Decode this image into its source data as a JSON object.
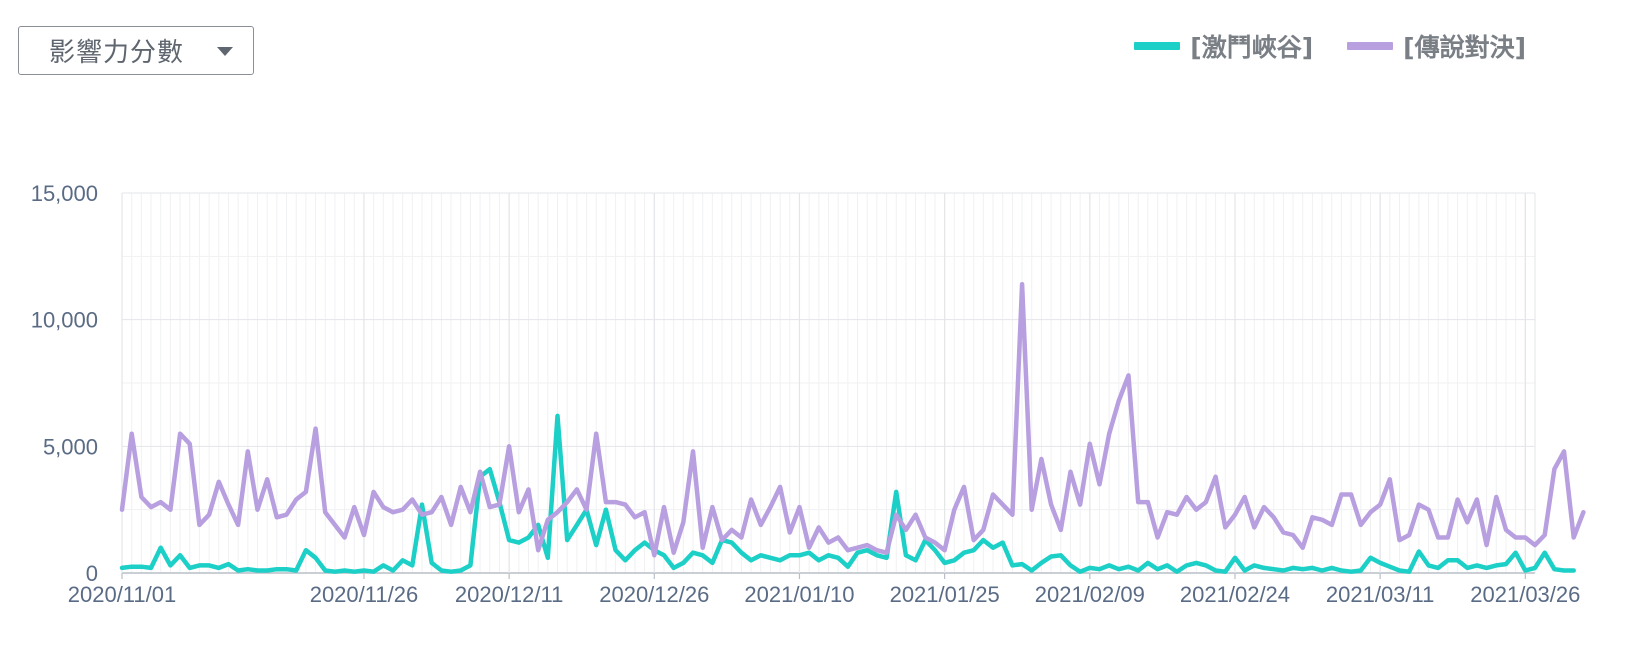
{
  "metric_selector": {
    "selected": "影響力分數"
  },
  "chart_data": {
    "type": "line",
    "title": "",
    "xlabel": "",
    "ylabel": "",
    "ylim": [
      0,
      15000
    ],
    "y_ticks": [
      "0",
      "5,000",
      "10,000",
      "15,000"
    ],
    "y_tick_values": [
      0,
      5000,
      10000,
      15000
    ],
    "x_tick_labels": [
      "2020/11/01",
      "2020/11/26",
      "2020/12/11",
      "2020/12/26",
      "2021/01/10",
      "2021/01/25",
      "2021/02/09",
      "2021/02/24",
      "2021/03/11",
      "2021/03/26"
    ],
    "x_range": [
      "2020/11/01",
      "2021/03/27"
    ],
    "grid": true,
    "legend_position": "top-right",
    "colors": {
      "series_1": "#1ccfc7",
      "series_2": "#b89fe0"
    },
    "series": [
      {
        "name": "[激鬥峽谷]",
        "color": "#1ccfc7",
        "values": [
          200,
          250,
          250,
          200,
          1000,
          300,
          700,
          200,
          300,
          300,
          200,
          350,
          100,
          150,
          100,
          100,
          150,
          150,
          100,
          900,
          600,
          100,
          50,
          100,
          50,
          100,
          50,
          300,
          100,
          500,
          300,
          2700,
          400,
          100,
          50,
          100,
          300,
          3800,
          4100,
          2800,
          1300,
          1200,
          1400,
          1900,
          600,
          6200,
          1300,
          1900,
          2500,
          1100,
          2500,
          900,
          500,
          900,
          1200,
          900,
          700,
          200,
          400,
          800,
          700,
          400,
          1300,
          1200,
          800,
          500,
          700,
          600,
          500,
          700,
          700,
          800,
          500,
          700,
          600,
          250,
          800,
          900,
          700,
          600,
          3200,
          700,
          500,
          1300,
          900,
          400,
          500,
          800,
          900,
          1300,
          1000,
          1200,
          300,
          350,
          100,
          400,
          650,
          700,
          300,
          50,
          200,
          150,
          300,
          150,
          250,
          100,
          400,
          150,
          300,
          50,
          300,
          400,
          300,
          100,
          50,
          600,
          100,
          300,
          200,
          150,
          100,
          200,
          150,
          200,
          100,
          200,
          100,
          50,
          100,
          600,
          400,
          250,
          100,
          50,
          850,
          300,
          200,
          500,
          500,
          200,
          300,
          200,
          300,
          350,
          800,
          100,
          200,
          800,
          150,
          100,
          100
        ]
      },
      {
        "name": "[傳說對決]",
        "color": "#b89fe0",
        "values": [
          2500,
          5500,
          3000,
          2600,
          2800,
          2500,
          5500,
          5100,
          1900,
          2300,
          3600,
          2700,
          1900,
          4800,
          2500,
          3700,
          2200,
          2300,
          2900,
          3200,
          5700,
          2400,
          1900,
          1400,
          2600,
          1500,
          3200,
          2600,
          2400,
          2500,
          2900,
          2300,
          2400,
          3000,
          1900,
          3400,
          2400,
          4000,
          2600,
          2700,
          5000,
          2400,
          3300,
          900,
          2100,
          2400,
          2800,
          3300,
          2500,
          5500,
          2800,
          2800,
          2700,
          2200,
          2400,
          700,
          2600,
          800,
          2000,
          4800,
          1000,
          2600,
          1300,
          1700,
          1400,
          2900,
          1900,
          2600,
          3400,
          1600,
          2600,
          1000,
          1800,
          1200,
          1400,
          900,
          1000,
          1100,
          900,
          800,
          2300,
          1700,
          2300,
          1400,
          1200,
          900,
          2500,
          3400,
          1300,
          1700,
          3100,
          2700,
          2300,
          11400,
          2500,
          4500,
          2700,
          1700,
          4000,
          2700,
          5100,
          3500,
          5500,
          6800,
          7800,
          2800,
          2800,
          1400,
          2400,
          2300,
          3000,
          2500,
          2800,
          3800,
          1800,
          2300,
          3000,
          1800,
          2600,
          2200,
          1600,
          1500,
          1000,
          2200,
          2100,
          1900,
          3100,
          3100,
          1900,
          2400,
          2700,
          3700,
          1300,
          1500,
          2700,
          2500,
          1400,
          1400,
          2900,
          2000,
          2900,
          1100,
          3000,
          1700,
          1400,
          1400,
          1100,
          1500,
          4100,
          4800,
          1400,
          2400
        ]
      }
    ]
  }
}
